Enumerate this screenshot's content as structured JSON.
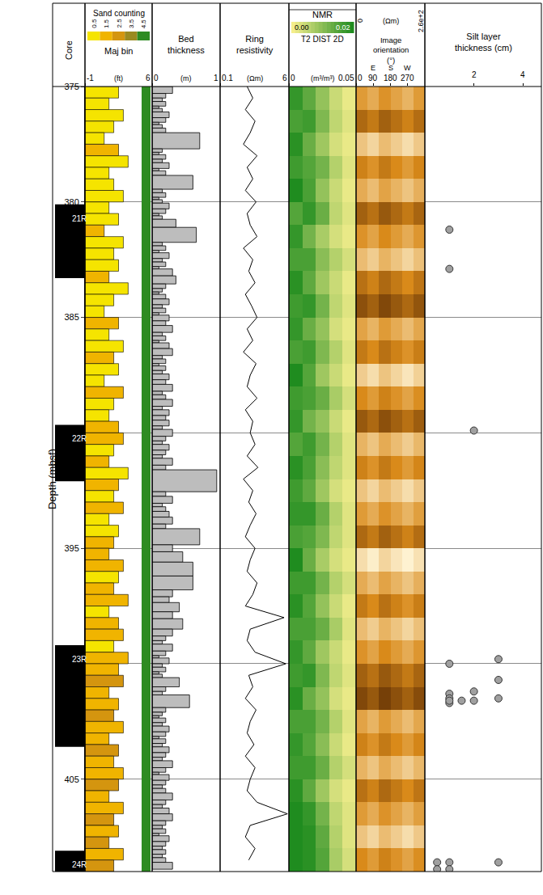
{
  "chart_data": {
    "type": "well_log",
    "y_label": "Depth (mbsf)",
    "ylim": [
      375,
      409
    ],
    "yticks": [
      375,
      380,
      385,
      390,
      395,
      400,
      405
    ],
    "grid": true,
    "depth": [
      375,
      375.5,
      376,
      376.5,
      377,
      377.5,
      378,
      378.5,
      379,
      379.5,
      380,
      380.5,
      381,
      381.5,
      382,
      382.5,
      383,
      383.5,
      384,
      384.5,
      385,
      385.5,
      386,
      386.5,
      387,
      387.5,
      388,
      388.5,
      389,
      389.5,
      390,
      390.5,
      391,
      391.5,
      392,
      392.5,
      393,
      393.5,
      394,
      394.5,
      395,
      395.5,
      396,
      396.5,
      397,
      397.5,
      398,
      398.5,
      399,
      399.5,
      400,
      400.5,
      401,
      401.5,
      402,
      402.5,
      403,
      403.5,
      404,
      404.5,
      405,
      405.5,
      406,
      406.5,
      407,
      407.5,
      408,
      408.5
    ],
    "core": {
      "label": "Core",
      "color": "#000000",
      "intervals": [
        {
          "label": "21R",
          "top": 380.1,
          "bottom": 383.3
        },
        {
          "label": "22R",
          "top": 389.65,
          "bottom": 392.1
        },
        {
          "label": "23R",
          "top": 399.2,
          "bottom": 403.6
        },
        {
          "label": "24R",
          "top": 408.1,
          "bottom": 409
        }
      ]
    },
    "sand_counting": {
      "title": "Sand counting",
      "legend_title": "Maj bin",
      "unit": "(ft)",
      "xlim": [
        -1,
        6
      ],
      "xticks": [
        -1,
        6
      ],
      "bins": [
        0.5,
        1.5,
        2.5,
        3.5,
        4.5
      ],
      "colors": [
        "#f5e400",
        "#f0b400",
        "#d4950f",
        "#9a8a20",
        "#2e8b22"
      ],
      "maj_bin": 4.5,
      "values": [
        2.5,
        1.5,
        3.0,
        2.0,
        1.0,
        2.5,
        3.5,
        1.5,
        2.0,
        3.0,
        1.5,
        2.5,
        1.0,
        3.0,
        2.0,
        2.5,
        1.5,
        3.5,
        2.0,
        1.0,
        2.5,
        1.5,
        3.0,
        2.0,
        2.5,
        1.0,
        3.0,
        2.0,
        1.5,
        2.5,
        3.0,
        2.0,
        1.5,
        3.5,
        2.5,
        2.0,
        3.0,
        1.5,
        2.5,
        2.0,
        1.5,
        3.0,
        2.5,
        2.0,
        3.5,
        1.5,
        2.5,
        3.0,
        2.0,
        3.5,
        2.5,
        3.0,
        1.5,
        2.5,
        2.0,
        3.0,
        1.5,
        2.5,
        2.0,
        3.0,
        2.5,
        1.5,
        3.0,
        2.0,
        2.5,
        1.5,
        3.0,
        2.0
      ],
      "bin": [
        0.5,
        0.5,
        0.5,
        0.5,
        0.5,
        1.5,
        0.5,
        0.5,
        0.5,
        0.5,
        0.5,
        0.5,
        1.5,
        0.5,
        0.5,
        0.5,
        1.5,
        0.5,
        0.5,
        0.5,
        1.5,
        0.5,
        0.5,
        1.5,
        0.5,
        0.5,
        1.5,
        0.5,
        0.5,
        1.5,
        1.5,
        0.5,
        1.5,
        0.5,
        1.5,
        0.5,
        1.5,
        0.5,
        0.5,
        1.5,
        1.5,
        1.5,
        0.5,
        1.5,
        1.5,
        0.5,
        1.5,
        1.5,
        0.5,
        1.5,
        1.5,
        2.5,
        1.5,
        1.5,
        2.5,
        1.5,
        1.5,
        2.5,
        1.5,
        1.5,
        2.5,
        1.5,
        1.5,
        2.5,
        1.5,
        2.5,
        1.5,
        2.5
      ]
    },
    "bed_thickness": {
      "title": "Bed thickness",
      "unit": "(m)",
      "xlim": [
        0,
        1
      ],
      "xticks": [
        0,
        1
      ],
      "color": "#bdbdbd",
      "start_depth": 375,
      "values": [
        0.3,
        0.2,
        0.15,
        0.2,
        0.1,
        0.15,
        0.25,
        0.2,
        0.1,
        0.15,
        0.2,
        0.7,
        0.15,
        0.1,
        0.2,
        0.15,
        0.25,
        0.1,
        0.2,
        0.6,
        0.15,
        0.2,
        0.1,
        0.15,
        0.25,
        0.2,
        0.1,
        0.15,
        0.35,
        0.65,
        0.15,
        0.2,
        0.1,
        0.25,
        0.15,
        0.2,
        0.1,
        0.3,
        0.35,
        0.2,
        0.15,
        0.1,
        0.2,
        0.25,
        0.15,
        0.2,
        0.1,
        0.25,
        0.2,
        0.3,
        0.15,
        0.2,
        0.1,
        0.25,
        0.3,
        0.15,
        0.2,
        0.1,
        0.2,
        0.15,
        0.25,
        0.2,
        0.3,
        0.15,
        0.2,
        0.3,
        0.15,
        0.25,
        0.2,
        0.25,
        0.15,
        0.3,
        0.2,
        0.15,
        0.25,
        0.2,
        0.15,
        0.3,
        0.2,
        0.95,
        0.2,
        0.3,
        0.15,
        0.2,
        0.25,
        0.3,
        0.2,
        0.7,
        0.3,
        0.45,
        0.6,
        0.6,
        0.3,
        0.25,
        0.4,
        0.3,
        0.45,
        0.3,
        0.2,
        0.15,
        0.3,
        0.2,
        0.1,
        0.25,
        0.15,
        0.2,
        0.1,
        0.15,
        0.4,
        0.2,
        0.15,
        0.55,
        0.2,
        0.15,
        0.1,
        0.2,
        0.15,
        0.25,
        0.2,
        0.1,
        0.2,
        0.15,
        0.25,
        0.2,
        0.15,
        0.3,
        0.2,
        0.1,
        0.25,
        0.2,
        0.15,
        0.2,
        0.3,
        0.2,
        0.15,
        0.25,
        0.3,
        0.2,
        0.15,
        0.2,
        0.1,
        0.25,
        0.2,
        0.15,
        0.2,
        0.15,
        0.2,
        0.3
      ]
    },
    "ring_resistivity": {
      "title": "Ring resistivity",
      "unit": "(Ωm)",
      "log": "x",
      "xlim": [
        0.1,
        6
      ],
      "xticks": [
        0.1,
        6
      ],
      "color": "#000000",
      "values": [
        0.5,
        0.7,
        0.45,
        0.8,
        0.6,
        0.4,
        0.9,
        0.5,
        0.7,
        0.45,
        0.85,
        0.5,
        0.6,
        0.9,
        0.4,
        0.7,
        0.55,
        0.8,
        0.45,
        0.65,
        0.9,
        0.5,
        0.7,
        0.4,
        0.85,
        0.6,
        0.5,
        0.9,
        0.45,
        0.7,
        0.6,
        0.8,
        0.5,
        0.95,
        0.4,
        0.7,
        0.55,
        0.85,
        0.6,
        0.45,
        0.8,
        0.6,
        0.5,
        0.9,
        0.7,
        0.45,
        4.5,
        0.6,
        0.5,
        0.8,
        5.0,
        0.55,
        0.7,
        0.45,
        0.85,
        0.6,
        0.5,
        0.75,
        0.45,
        0.8,
        0.6,
        0.5,
        0.9,
        5.5,
        0.6,
        0.45,
        0.8,
        0.55
      ]
    },
    "nmr": {
      "title": "NMR",
      "subtitle": "T2 DIST 2D",
      "unit": "(m³/m³)",
      "xlim": [
        0,
        0.05
      ],
      "xticks": [
        0,
        0.05
      ],
      "color_range": [
        0,
        0.02
      ],
      "color_ticks": [
        {
          "value": 0,
          "label": "0.00"
        },
        {
          "value": 0.02,
          "label": "0.02"
        }
      ],
      "colors": [
        "#f4ee8c",
        "#1f8c1f"
      ],
      "x": [
        0.005,
        0.015,
        0.025,
        0.035,
        0.045
      ],
      "depth": [
        375.5,
        376.5,
        377.5,
        378.5,
        379.5,
        380.5,
        381.5,
        382.5,
        383.5,
        384.5,
        385.5,
        386.5,
        387.5,
        388.5,
        389.5,
        390.5,
        391.5,
        392.5,
        393.5,
        394.5,
        395.5,
        396.5,
        397.5,
        398.5,
        399.5,
        400.5,
        401.5,
        402.5,
        403.5,
        404.5,
        405.5,
        406.5,
        407.5,
        408.5
      ],
      "values": [
        [
          0.018,
          0.014,
          0.009,
          0.004,
          0.001
        ],
        [
          0.016,
          0.017,
          0.011,
          0.005,
          0.002
        ],
        [
          0.019,
          0.013,
          0.008,
          0.003,
          0.001
        ],
        [
          0.017,
          0.015,
          0.012,
          0.006,
          0.002
        ],
        [
          0.02,
          0.016,
          0.009,
          0.004,
          0.001
        ],
        [
          0.015,
          0.018,
          0.013,
          0.005,
          0.002
        ],
        [
          0.018,
          0.012,
          0.007,
          0.003,
          0.001
        ],
        [
          0.016,
          0.016,
          0.01,
          0.006,
          0.003
        ],
        [
          0.019,
          0.014,
          0.008,
          0.004,
          0.001
        ],
        [
          0.017,
          0.018,
          0.012,
          0.005,
          0.002
        ],
        [
          0.018,
          0.013,
          0.009,
          0.003,
          0.001
        ],
        [
          0.016,
          0.017,
          0.011,
          0.006,
          0.002
        ],
        [
          0.02,
          0.015,
          0.008,
          0.004,
          0.001
        ],
        [
          0.017,
          0.016,
          0.013,
          0.007,
          0.003
        ],
        [
          0.018,
          0.012,
          0.009,
          0.004,
          0.001
        ],
        [
          0.015,
          0.017,
          0.012,
          0.006,
          0.002
        ],
        [
          0.019,
          0.016,
          0.01,
          0.005,
          0.002
        ],
        [
          0.017,
          0.014,
          0.008,
          0.003,
          0.001
        ],
        [
          0.018,
          0.018,
          0.013,
          0.006,
          0.002
        ],
        [
          0.016,
          0.015,
          0.011,
          0.005,
          0.002
        ],
        [
          0.02,
          0.013,
          0.007,
          0.003,
          0.001
        ],
        [
          0.017,
          0.017,
          0.012,
          0.006,
          0.003
        ],
        [
          0.019,
          0.015,
          0.009,
          0.004,
          0.001
        ],
        [
          0.016,
          0.016,
          0.013,
          0.007,
          0.002
        ],
        [
          0.018,
          0.014,
          0.008,
          0.004,
          0.001
        ],
        [
          0.017,
          0.018,
          0.011,
          0.005,
          0.002
        ],
        [
          0.019,
          0.013,
          0.009,
          0.003,
          0.001
        ],
        [
          0.016,
          0.016,
          0.012,
          0.006,
          0.002
        ],
        [
          0.018,
          0.015,
          0.01,
          0.004,
          0.001
        ],
        [
          0.017,
          0.017,
          0.013,
          0.006,
          0.003
        ],
        [
          0.019,
          0.014,
          0.008,
          0.003,
          0.001
        ],
        [
          0.02,
          0.018,
          0.012,
          0.005,
          0.002
        ],
        [
          0.02,
          0.019,
          0.014,
          0.006,
          0.002
        ],
        [
          0.02,
          0.019,
          0.015,
          0.007,
          0.003
        ]
      ]
    },
    "image": {
      "title": "Image orientation (°)",
      "xlim": [
        0,
        360
      ],
      "xticks": [
        0,
        90,
        180,
        270
      ],
      "direction_ticks": [
        {
          "value": 90,
          "label": "E"
        },
        {
          "value": 180,
          "label": "S"
        },
        {
          "value": 270,
          "label": "W"
        }
      ],
      "color_unit": "(Ωm)",
      "color_range": [
        0,
        260
      ],
      "color_ticks": [
        0,
        {
          "value": 260,
          "label": "2.6e+2"
        }
      ],
      "colors": [
        "#4a1f00",
        "#d98a1a",
        "#fff6d8"
      ],
      "x": [
        30,
        90,
        150,
        210,
        270,
        330
      ],
      "depth": [
        375.5,
        376.5,
        377.5,
        378.5,
        379.5,
        380.5,
        381.5,
        382.5,
        383.5,
        384.5,
        385.5,
        386.5,
        387.5,
        388.5,
        389.5,
        390.5,
        391.5,
        392.5,
        393.5,
        394.5,
        395.5,
        396.5,
        397.5,
        398.5,
        399.5,
        400.5,
        401.5,
        402.5,
        403.5,
        404.5,
        405.5,
        406.5,
        407.5,
        408.5
      ],
      "values": [
        [
          150,
          170,
          140,
          160,
          180,
          150
        ],
        [
          90,
          110,
          80,
          100,
          120,
          95
        ],
        [
          200,
          220,
          190,
          210,
          230,
          205
        ],
        [
          120,
          140,
          110,
          130,
          150,
          125
        ],
        [
          170,
          190,
          160,
          180,
          200,
          175
        ],
        [
          80,
          100,
          70,
          90,
          110,
          85
        ],
        [
          140,
          160,
          130,
          150,
          170,
          145
        ],
        [
          190,
          210,
          180,
          200,
          220,
          195
        ],
        [
          100,
          120,
          90,
          110,
          130,
          105
        ],
        [
          60,
          80,
          50,
          70,
          90,
          65
        ],
        [
          160,
          180,
          150,
          170,
          190,
          165
        ],
        [
          110,
          130,
          100,
          120,
          140,
          115
        ],
        [
          210,
          230,
          200,
          220,
          240,
          215
        ],
        [
          130,
          150,
          120,
          140,
          160,
          135
        ],
        [
          70,
          90,
          60,
          80,
          100,
          75
        ],
        [
          180,
          200,
          170,
          190,
          210,
          185
        ],
        [
          120,
          140,
          110,
          130,
          150,
          125
        ],
        [
          200,
          220,
          190,
          210,
          230,
          205
        ],
        [
          150,
          170,
          140,
          160,
          180,
          155
        ],
        [
          90,
          110,
          80,
          100,
          120,
          95
        ],
        [
          230,
          250,
          220,
          240,
          255,
          235
        ],
        [
          170,
          190,
          160,
          180,
          200,
          175
        ],
        [
          110,
          130,
          100,
          120,
          140,
          115
        ],
        [
          190,
          210,
          180,
          200,
          220,
          195
        ],
        [
          140,
          160,
          130,
          150,
          170,
          145
        ],
        [
          80,
          100,
          70,
          90,
          110,
          85
        ],
        [
          50,
          70,
          40,
          60,
          80,
          55
        ],
        [
          160,
          180,
          150,
          170,
          190,
          165
        ],
        [
          120,
          140,
          110,
          130,
          150,
          125
        ],
        [
          180,
          200,
          170,
          190,
          210,
          185
        ],
        [
          100,
          120,
          90,
          110,
          130,
          105
        ],
        [
          150,
          170,
          140,
          160,
          180,
          155
        ],
        [
          200,
          220,
          190,
          210,
          230,
          205
        ],
        [
          130,
          150,
          120,
          140,
          160,
          135
        ]
      ]
    },
    "silt": {
      "title": "Silt layer thickness (cm)",
      "type": "scatter",
      "marker": "circle",
      "color": "#a0a0a0",
      "xlim": [
        0,
        4.75
      ],
      "xticks": [
        2,
        4
      ],
      "x": [
        1,
        1,
        2,
        1,
        3,
        3,
        1,
        2,
        1,
        1,
        1.5,
        2,
        3,
        1,
        0.5,
        1,
        3,
        0.5,
        1
      ],
      "depth": [
        381.2,
        382.9,
        389.9,
        400.0,
        399.8,
        400.7,
        401.3,
        401.2,
        401.5,
        401.7,
        401.6,
        401.6,
        401.5,
        401.6,
        408.6,
        408.6,
        408.6,
        408.9,
        408.9
      ]
    }
  }
}
